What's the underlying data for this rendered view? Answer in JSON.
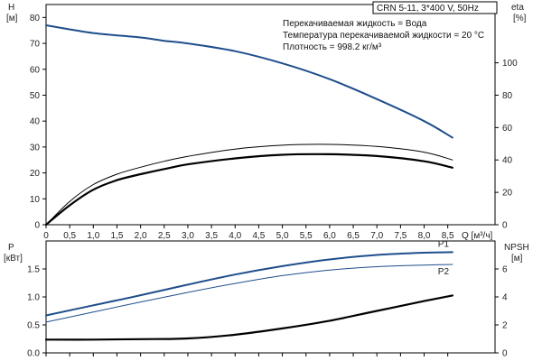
{
  "header": {
    "model": "CRN 5-11, 3*400 V, 50Hz",
    "info": [
      "Перекачиваемая жидкость = Вода",
      "Температура перекачиваемой жидкости = 20 °C",
      "Плотность = 998.2 кг/м³"
    ]
  },
  "chart_data": [
    {
      "type": "line",
      "left_axis": {
        "label": "H",
        "unit": "[м]",
        "ylim": [
          0,
          85
        ],
        "ticks": [
          0,
          10,
          20,
          30,
          40,
          50,
          60,
          70,
          80
        ]
      },
      "right_axis": {
        "label": "eta",
        "unit": "[%]",
        "ylim": [
          0,
          136
        ],
        "ticks": [
          0,
          20,
          40,
          60,
          80,
          100
        ]
      },
      "x_axis": {
        "unit": "Q [м³/ч]",
        "xlim": [
          0,
          9.5
        ],
        "ticks": [
          "0",
          "0,5",
          "1,0",
          "1,5",
          "2,0",
          "2,5",
          "3,0",
          "3,5",
          "4,0",
          "4,5",
          "5,0",
          "5,5",
          "6,0",
          "6,5",
          "7,0",
          "7,5",
          "8,0",
          "8,5"
        ]
      },
      "series": [
        {
          "color": "#1f4e8c",
          "axis": "left",
          "width": 2,
          "x": [
            0,
            1,
            2,
            2.5,
            3,
            4,
            5,
            6,
            7,
            8,
            8.6
          ],
          "y": [
            77,
            74,
            72.3,
            71,
            70,
            67,
            62.3,
            56.2,
            48.5,
            40,
            33.6
          ]
        },
        {
          "color": "#000000",
          "axis": "left",
          "width": 1,
          "x": [
            0,
            0.5,
            1,
            1.5,
            2,
            2.5,
            3,
            4,
            5,
            6,
            7,
            8,
            8.6
          ],
          "y": [
            0,
            9,
            15.5,
            19.5,
            22.2,
            24.5,
            26.4,
            29.2,
            30.7,
            31,
            30.2,
            28,
            25
          ]
        },
        {
          "color": "#000000",
          "axis": "left",
          "width": 2.2,
          "x": [
            0,
            0.5,
            1,
            1.5,
            2,
            2.5,
            3,
            4,
            5,
            6,
            7,
            8,
            8.6
          ],
          "y": [
            0,
            7.5,
            13.5,
            17.2,
            19.5,
            21.5,
            23.3,
            25.6,
            27,
            27.2,
            26.5,
            24.5,
            22
          ]
        }
      ]
    },
    {
      "type": "line",
      "left_axis": {
        "label": "P",
        "unit": "[кВт]",
        "ylim": [
          0,
          2.0
        ],
        "ticks": [
          "0.0",
          "0.5",
          "1.0",
          "1.5"
        ]
      },
      "right_axis": {
        "label": "NPSH",
        "unit": "[м]",
        "ylim": [
          0,
          8
        ],
        "ticks": [
          0,
          2,
          4,
          6
        ]
      },
      "x_axis": {
        "xlim": [
          0,
          9.5
        ]
      },
      "series": [
        {
          "name": "P1",
          "color": "#1f4e8c",
          "axis": "left",
          "width": 2,
          "x": [
            0,
            1,
            2,
            3,
            4,
            5,
            6,
            7,
            8,
            8.6
          ],
          "y": [
            0.67,
            0.85,
            1.03,
            1.22,
            1.4,
            1.55,
            1.67,
            1.75,
            1.79,
            1.8
          ]
        },
        {
          "name": "P2",
          "color": "#1f4e8c",
          "axis": "left",
          "width": 1,
          "x": [
            0,
            1,
            2,
            3,
            4,
            5,
            6,
            7,
            8,
            8.6
          ],
          "y": [
            0.55,
            0.73,
            0.91,
            1.08,
            1.24,
            1.38,
            1.48,
            1.54,
            1.57,
            1.58
          ]
        },
        {
          "color": "#000000",
          "axis": "right",
          "width": 2.2,
          "x": [
            0,
            1,
            2,
            3,
            4,
            5,
            6,
            7,
            8,
            8.6
          ],
          "y": [
            0.95,
            0.95,
            0.98,
            1.03,
            1.3,
            1.75,
            2.3,
            3.0,
            3.7,
            4.1
          ]
        }
      ]
    }
  ]
}
